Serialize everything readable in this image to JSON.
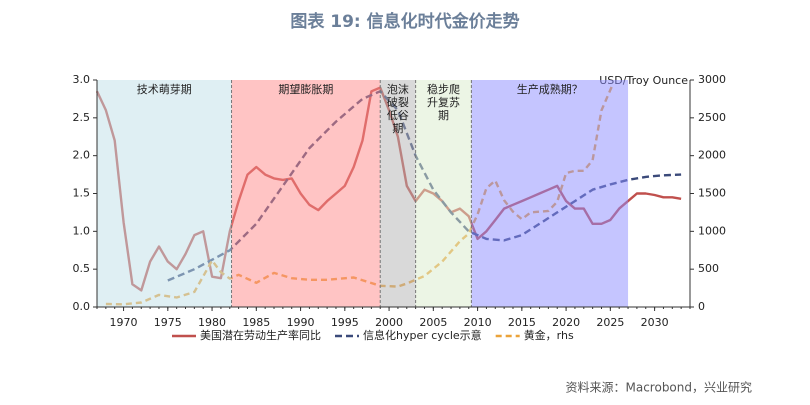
{
  "title": "图表 19: 信息化时代金价走势",
  "source": "资料来源：Macrobond，兴业研究",
  "chart_data": {
    "type": "line",
    "y2_label": "USD/Troy Ounce",
    "xlim": [
      1967,
      2034
    ],
    "xticks": [
      1970,
      1975,
      1980,
      1985,
      1990,
      1995,
      2000,
      2005,
      2010,
      2015,
      2020,
      2025,
      2030
    ],
    "ylim": [
      0,
      3
    ],
    "yticks": [
      {
        "value": 0,
        "label": "0.0"
      },
      {
        "value": 0.5,
        "label": "0.5"
      },
      {
        "value": 1,
        "label": "1.0"
      },
      {
        "value": 1.5,
        "label": "1.5"
      },
      {
        "value": 2,
        "label": "2.0"
      },
      {
        "value": 2.5,
        "label": "2.5"
      },
      {
        "value": 3,
        "label": "3.0"
      }
    ],
    "y2lim": [
      0,
      3000
    ],
    "y2ticks": [
      0,
      500,
      1000,
      1500,
      2000,
      2500,
      3000
    ],
    "regions": [
      {
        "label": "技术萌芽期",
        "start": 1967,
        "end": 1982.2,
        "color": "#bfe0e8"
      },
      {
        "label": "期望膨胀期",
        "start": 1982.2,
        "end": 1999,
        "color": "#ff8a8a"
      },
      {
        "label": "泡沫破裂低谷期",
        "start": 1999,
        "end": 2003,
        "color": "#b3b3b3"
      },
      {
        "label": "稳步爬升复苏期",
        "start": 2003,
        "end": 2009.3,
        "color": "#d9ebcc"
      },
      {
        "label": "生产成熟期？",
        "start": 2009.3,
        "end": 2027,
        "color": "#8c8cff"
      }
    ],
    "series": [
      {
        "name": "美国潜在劳动生产率同比",
        "color": "#c0504d",
        "dash": "none",
        "x": [
          1967,
          1968,
          1969,
          1970,
          1971,
          1972,
          1973,
          1974,
          1975,
          1976,
          1977,
          1978,
          1979,
          1980,
          1981,
          1982,
          1983,
          1984,
          1985,
          1986,
          1987,
          1988,
          1989,
          1990,
          1991,
          1992,
          1993,
          1994,
          1995,
          1996,
          1997,
          1998,
          1999,
          2000,
          2001,
          2002,
          2003,
          2004,
          2005,
          2006,
          2007,
          2008,
          2009,
          2010,
          2011,
          2012,
          2013,
          2014,
          2015,
          2016,
          2017,
          2018,
          2019,
          2020,
          2021,
          2022,
          2023,
          2024,
          2025,
          2026,
          2027,
          2028,
          2029,
          2030,
          2031,
          2032,
          2033
        ],
        "values": [
          2.85,
          2.6,
          2.2,
          1.12,
          0.3,
          0.22,
          0.6,
          0.8,
          0.6,
          0.5,
          0.7,
          0.95,
          1.0,
          0.4,
          0.38,
          1.0,
          1.4,
          1.75,
          1.85,
          1.75,
          1.7,
          1.68,
          1.7,
          1.5,
          1.35,
          1.28,
          1.4,
          1.5,
          1.6,
          1.85,
          2.2,
          2.85,
          2.9,
          2.6,
          2.25,
          1.6,
          1.4,
          1.55,
          1.5,
          1.4,
          1.25,
          1.3,
          1.2,
          0.9,
          1.0,
          1.15,
          1.3,
          1.35,
          1.4,
          1.45,
          1.5,
          1.55,
          1.6,
          1.4,
          1.3,
          1.3,
          1.1,
          1.1,
          1.15,
          1.3,
          1.4,
          1.5,
          1.5,
          1.48,
          1.45,
          1.45,
          1.43
        ]
      },
      {
        "name": "信息化hyper cycle示意",
        "color": "#3b4a7a",
        "dash": "7 4",
        "x": [
          1975,
          1978,
          1982,
          1985,
          1988,
          1991,
          1994,
          1997,
          1999,
          2001,
          2003,
          2005,
          2007,
          2009,
          2011,
          2013,
          2015,
          2017,
          2019,
          2021,
          2023,
          2025,
          2027,
          2029,
          2031,
          2033
        ],
        "values": [
          0.35,
          0.5,
          0.75,
          1.1,
          1.6,
          2.1,
          2.45,
          2.75,
          2.85,
          2.6,
          2.0,
          1.55,
          1.25,
          1.0,
          0.9,
          0.88,
          0.95,
          1.1,
          1.25,
          1.4,
          1.55,
          1.62,
          1.68,
          1.72,
          1.74,
          1.75
        ]
      },
      {
        "name": "黄金，rhs",
        "color": "#eba33a",
        "dash": "6 4",
        "axis": "y2",
        "x": [
          1968,
          1970,
          1972,
          1974,
          1976,
          1978,
          1980,
          1981,
          1982,
          1983,
          1985,
          1987,
          1989,
          1991,
          1993,
          1996,
          1999,
          2001,
          2002,
          2004,
          2006,
          2008,
          2009,
          2010,
          2011,
          2012,
          2013,
          2014,
          2015,
          2016,
          2017,
          2018,
          2019,
          2020,
          2021,
          2022,
          2023,
          2024,
          2025.3
        ],
        "values": [
          40,
          36,
          60,
          160,
          125,
          200,
          615,
          460,
          375,
          425,
          320,
          450,
          380,
          360,
          360,
          390,
          280,
          270,
          310,
          410,
          600,
          870,
          970,
          1225,
          1570,
          1670,
          1410,
          1260,
          1160,
          1250,
          1260,
          1270,
          1390,
          1770,
          1800,
          1800,
          1940,
          2600,
          2950
        ]
      }
    ]
  }
}
